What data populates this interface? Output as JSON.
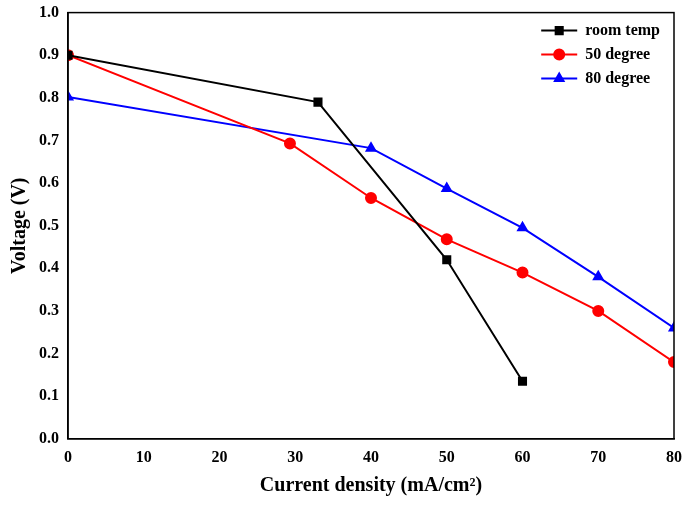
{
  "chart_data": {
    "type": "line",
    "x_label": "Current density (mA/cm²)",
    "y_label": "Voltage (V)",
    "series": [
      {
        "name": "room temp",
        "color": "#000000",
        "marker": "square",
        "line_style": "solid",
        "x": [
          0,
          33,
          50,
          60
        ],
        "values": [
          0.9,
          0.79,
          0.42,
          0.135
        ]
      },
      {
        "name": "50 degree",
        "color": "#ff0000",
        "marker": "circle",
        "line_style": "solid",
        "x": [
          0,
          29.3,
          40,
          50,
          60,
          70,
          80
        ],
        "values": [
          0.9,
          0.693,
          0.565,
          0.468,
          0.39,
          0.3,
          0.18
        ]
      },
      {
        "name": "80 degree",
        "color": "#0000ff",
        "marker": "triangle",
        "line_style": "solid",
        "x": [
          0,
          40,
          50,
          60,
          70,
          80
        ],
        "values": [
          0.802,
          0.682,
          0.587,
          0.495,
          0.38,
          0.26
        ]
      }
    ],
    "xlim": [
      0,
      80
    ],
    "xticks": [
      0,
      10,
      20,
      30,
      40,
      50,
      60,
      70,
      80
    ],
    "ylim": [
      0,
      1.0
    ],
    "yticks": [
      {
        "value": 0,
        "label": "0.0"
      },
      0.1,
      0.2,
      0.3,
      0.4,
      0.5,
      0.6,
      0.7,
      0.8,
      0.9,
      {
        "value": 1.0,
        "label": "1.0"
      }
    ],
    "grid": false,
    "legend": "upper right"
  }
}
